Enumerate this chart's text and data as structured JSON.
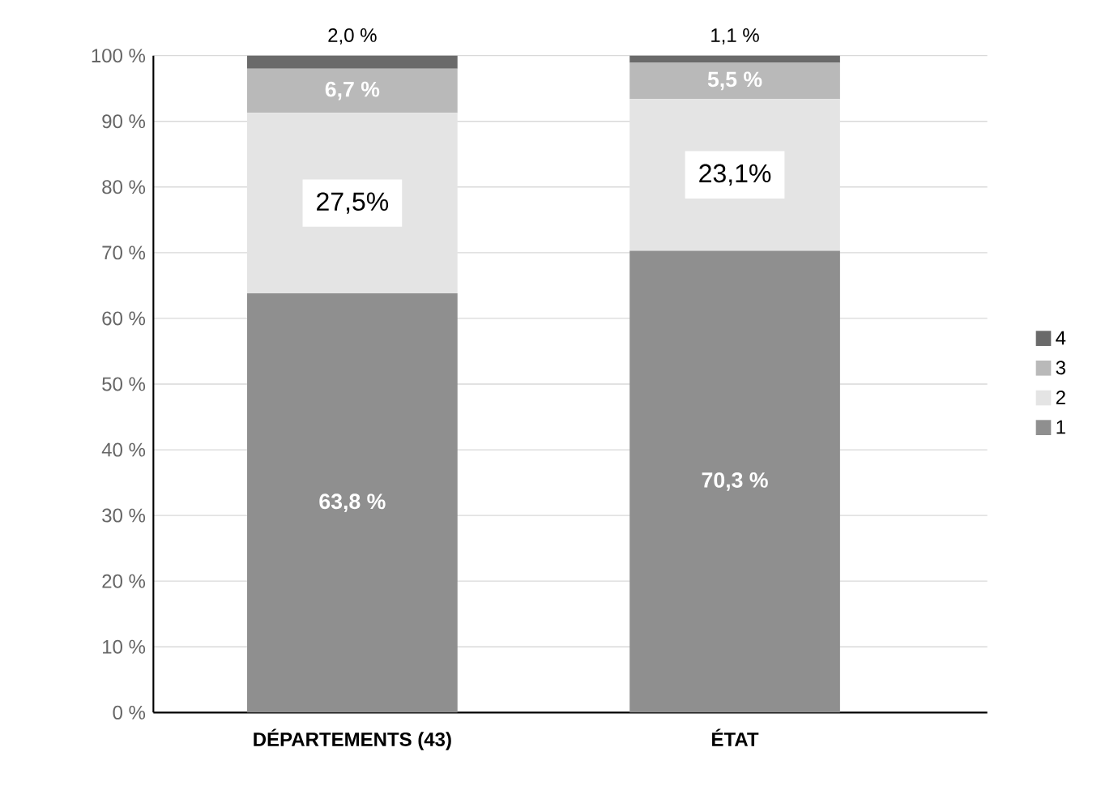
{
  "chart_data": {
    "type": "bar",
    "stacked": true,
    "categories": [
      "DÉPARTEMENTS (43)",
      "ÉTAT"
    ],
    "series": [
      {
        "name": "1",
        "color": "#8f8f8f",
        "values": [
          63.8,
          70.3
        ],
        "value_labels": [
          "63,8 %",
          "70,3 %"
        ]
      },
      {
        "name": "2",
        "color": "#e4e4e4",
        "values": [
          27.5,
          23.1
        ],
        "value_labels": [
          "27,5%",
          "23,1%"
        ]
      },
      {
        "name": "3",
        "color": "#b9b9b9",
        "values": [
          6.7,
          5.5
        ],
        "value_labels": [
          "6,7 %",
          "5,5 %"
        ]
      },
      {
        "name": "4",
        "color": "#6a6a6a",
        "values": [
          2.0,
          1.1
        ],
        "value_labels": [
          "2,0 %",
          "1,1 %"
        ]
      }
    ],
    "ylim": [
      0,
      100
    ],
    "yticks": [
      {
        "value": 0,
        "label": "0 %"
      },
      {
        "value": 10,
        "label": "10 %"
      },
      {
        "value": 20,
        "label": "20 %"
      },
      {
        "value": 30,
        "label": "30 %"
      },
      {
        "value": 40,
        "label": "40 %"
      },
      {
        "value": 50,
        "label": "50 %"
      },
      {
        "value": 60,
        "label": "60 %"
      },
      {
        "value": 70,
        "label": "70 %"
      },
      {
        "value": 80,
        "label": "80 %"
      },
      {
        "value": 90,
        "label": "90 %"
      },
      {
        "value": 100,
        "label": "100 %"
      }
    ],
    "grid": "y",
    "legend": "right"
  }
}
